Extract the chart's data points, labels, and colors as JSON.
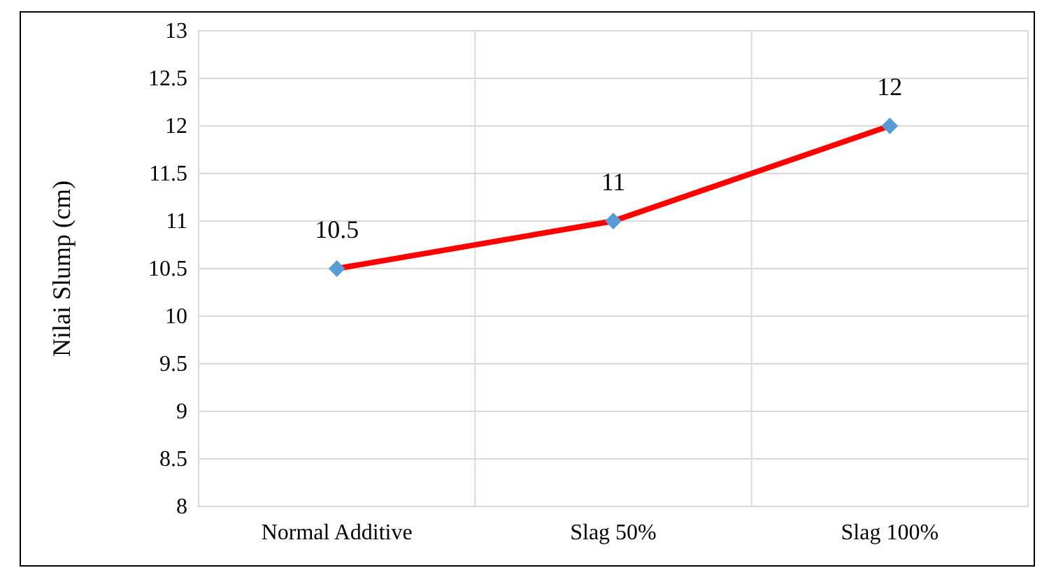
{
  "chart_data": {
    "type": "line",
    "ylabel": "Nilai Slump (cm)",
    "categories": [
      "Normal Additive",
      "Slag 50%",
      "Slag 100%"
    ],
    "series": [
      {
        "color": "#ff0000",
        "values": [
          10.5,
          11,
          12
        ]
      }
    ],
    "ylim": [
      8,
      13
    ],
    "yticks": [
      8,
      8.5,
      9,
      9.5,
      10,
      10.5,
      11,
      11.5,
      12,
      12.5,
      13
    ],
    "grid": true,
    "marker": "diamond",
    "data_labels": true,
    "line_style": "solid"
  }
}
